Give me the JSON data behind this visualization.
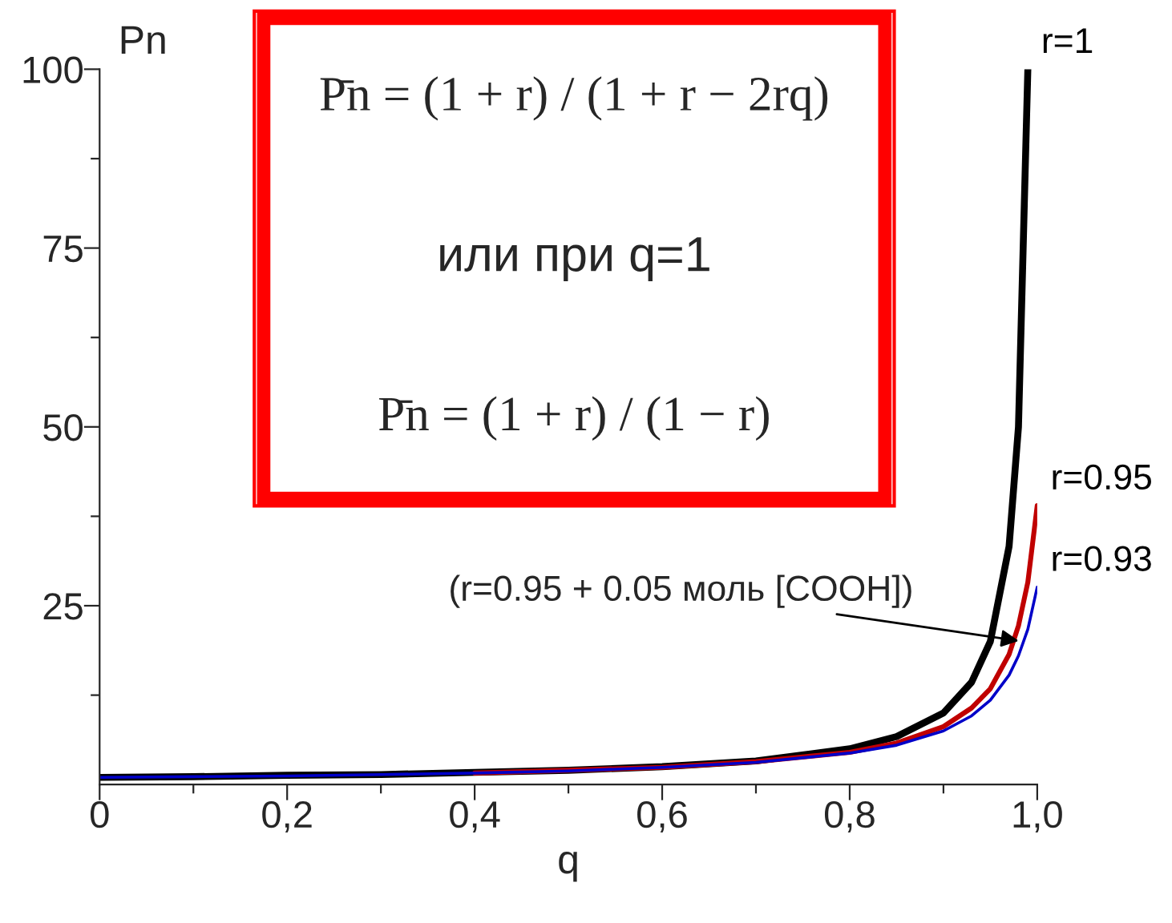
{
  "chart_data": {
    "type": "line",
    "xlabel": "q",
    "ylabel": "Pn",
    "x": [
      0,
      0.1,
      0.2,
      0.3,
      0.4,
      0.5,
      0.6,
      0.7,
      0.8,
      0.85,
      0.9,
      0.93,
      0.95,
      0.97,
      0.98,
      0.99,
      1.0
    ],
    "series": [
      {
        "name": "r=1",
        "color": "#000000",
        "values": [
          1,
          1.1,
          1.3,
          1.4,
          1.7,
          2,
          2.5,
          3.3,
          5,
          6.7,
          10,
          14.3,
          20,
          33.3,
          50,
          100,
          null
        ]
      },
      {
        "name": "r=0.95",
        "color": "#c00000",
        "values": [
          null,
          null,
          null,
          null,
          1.6,
          2,
          2.4,
          3.2,
          4.5,
          5.8,
          8.1,
          10.7,
          13.4,
          18.2,
          22.2,
          28.3,
          39
        ]
      },
      {
        "name": "r=0.93",
        "color": "#0000c8",
        "values": [
          1,
          1.1,
          1.2,
          1.4,
          1.6,
          1.9,
          2.4,
          3.1,
          4.4,
          5.5,
          7.5,
          9.6,
          11.8,
          15.3,
          18,
          21.7,
          27.6
        ]
      }
    ],
    "xlim": [
      0,
      1.0
    ],
    "ylim": [
      0,
      100
    ],
    "xticks": [
      0,
      {
        "value": 0.1,
        "label": null
      },
      {
        "value": 0.2,
        "label": "0,2"
      },
      {
        "value": 0.3,
        "label": null
      },
      {
        "value": 0.4,
        "label": "0,4"
      },
      {
        "value": 0.5,
        "label": null
      },
      {
        "value": 0.6,
        "label": "0,6"
      },
      {
        "value": 0.7,
        "label": null
      },
      {
        "value": 0.8,
        "label": "0,8"
      },
      {
        "value": 0.9,
        "label": null
      },
      {
        "value": 1.0,
        "label": "1,0"
      }
    ],
    "yticks": [
      {
        "value": 12.5,
        "label": null
      },
      25,
      {
        "value": 37.5,
        "label": null
      },
      50,
      {
        "value": 62.5,
        "label": null
      },
      75,
      {
        "value": 87.5,
        "label": null
      },
      100
    ],
    "annotations": [
      {
        "text": "(r=0.95 + 0.05 моль [COOH])",
        "x": 0.985,
        "y": 20
      },
      "P̄n = (1 + r) / (1 + r − 2rq)",
      "или при q=1",
      "P̄n = (1 + r) / (1 − r)"
    ],
    "grid": false,
    "legend": false,
    "marker": "none",
    "line_style": "solid"
  }
}
